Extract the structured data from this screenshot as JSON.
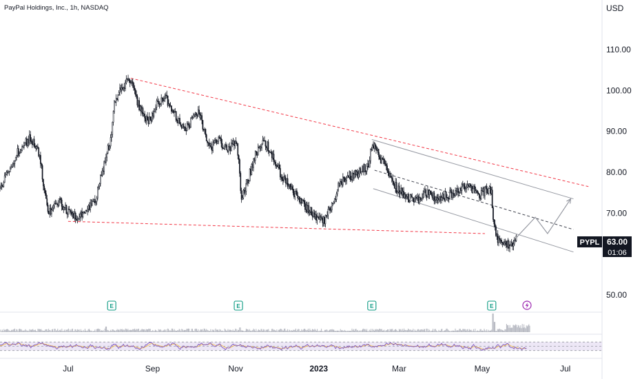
{
  "header": {
    "title": "PayPal Holdings, Inc., 1h, NASDAQ",
    "currency": "USD"
  },
  "badge": {
    "symbol": "PYPL",
    "price": "63.00",
    "countdown": "01:06"
  },
  "earnings": {
    "label": "E",
    "dates": [
      "2022-08-02",
      "2022-11-03",
      "2023-02-09",
      "2023-05-08"
    ]
  },
  "split_icon": "lightning-icon",
  "colors": {
    "candle": "#131722",
    "trend_red": "#f23645",
    "channel_gray": "#9598a1",
    "earnings": "#089981",
    "rsi_line": "#7e57c2",
    "rsi_fast": "#f5c04a",
    "rsi_band": "#ede7f6",
    "split_badge": "#9c27b0"
  },
  "chart_data": {
    "type": "candlestick",
    "symbol": "PYPL",
    "interval": "1h",
    "exchange": "NASDAQ",
    "y_ticks": [
      "110.00",
      "100.00",
      "90.00",
      "80.00",
      "70.00",
      "50.00"
    ],
    "ylim": [
      44,
      118
    ],
    "x_ticks": [
      {
        "label": "Jul",
        "date": "2022-07-01"
      },
      {
        "label": "Sep",
        "date": "2022-09-01"
      },
      {
        "label": "Nov",
        "date": "2022-11-01"
      },
      {
        "label": "2023",
        "date": "2023-01-01",
        "bold": true
      },
      {
        "label": "Mar",
        "date": "2023-03-01"
      },
      {
        "label": "May",
        "date": "2023-05-01"
      },
      {
        "label": "Jul",
        "date": "2023-07-01"
      }
    ],
    "xlim": [
      "2022-05-12",
      "2023-07-28"
    ],
    "price_path": [
      [
        "2022-05-12",
        76
      ],
      [
        "2022-05-18",
        80
      ],
      [
        "2022-05-25",
        85
      ],
      [
        "2022-06-03",
        88.5
      ],
      [
        "2022-06-08",
        86
      ],
      [
        "2022-06-10",
        84
      ],
      [
        "2022-06-14",
        75
      ],
      [
        "2022-06-17",
        70
      ],
      [
        "2022-06-24",
        73
      ],
      [
        "2022-06-29",
        71
      ],
      [
        "2022-07-05",
        69
      ],
      [
        "2022-07-14",
        70
      ],
      [
        "2022-07-21",
        73
      ],
      [
        "2022-07-28",
        83
      ],
      [
        "2022-08-02",
        89
      ],
      [
        "2022-08-04",
        97
      ],
      [
        "2022-08-10",
        101
      ],
      [
        "2022-08-16",
        102.5
      ],
      [
        "2022-08-22",
        96
      ],
      [
        "2022-08-29",
        92
      ],
      [
        "2022-09-03",
        96
      ],
      [
        "2022-09-10",
        99
      ],
      [
        "2022-09-14",
        96
      ],
      [
        "2022-09-21",
        92
      ],
      [
        "2022-09-26",
        91
      ],
      [
        "2022-10-01",
        93
      ],
      [
        "2022-10-05",
        95
      ],
      [
        "2022-10-10",
        89
      ],
      [
        "2022-10-14",
        86
      ],
      [
        "2022-10-20",
        88
      ],
      [
        "2022-10-26",
        85
      ],
      [
        "2022-11-01",
        88
      ],
      [
        "2022-11-03",
        84
      ],
      [
        "2022-11-05",
        74
      ],
      [
        "2022-11-10",
        78
      ],
      [
        "2022-11-15",
        84
      ],
      [
        "2022-11-22",
        88
      ],
      [
        "2022-11-28",
        84
      ],
      [
        "2022-12-05",
        79
      ],
      [
        "2022-12-12",
        76
      ],
      [
        "2022-12-18",
        73
      ],
      [
        "2022-12-24",
        71
      ],
      [
        "2022-12-30",
        69
      ],
      [
        "2023-01-05",
        68
      ],
      [
        "2023-01-11",
        72
      ],
      [
        "2023-01-16",
        77
      ],
      [
        "2023-01-23",
        79
      ],
      [
        "2023-01-31",
        80
      ],
      [
        "2023-02-07",
        82
      ],
      [
        "2023-02-09",
        87
      ],
      [
        "2023-02-14",
        84
      ],
      [
        "2023-02-20",
        81
      ],
      [
        "2023-02-27",
        76
      ],
      [
        "2023-03-06",
        74
      ],
      [
        "2023-03-13",
        73
      ],
      [
        "2023-03-20",
        75
      ],
      [
        "2023-03-27",
        74
      ],
      [
        "2023-04-03",
        74
      ],
      [
        "2023-04-10",
        75
      ],
      [
        "2023-04-17",
        77
      ],
      [
        "2023-04-24",
        76
      ],
      [
        "2023-04-28",
        74
      ],
      [
        "2023-05-01",
        75
      ],
      [
        "2023-05-05",
        76
      ],
      [
        "2023-05-08",
        75
      ],
      [
        "2023-05-09",
        68
      ],
      [
        "2023-05-12",
        64
      ],
      [
        "2023-05-16",
        62
      ],
      [
        "2023-05-20",
        62.2
      ],
      [
        "2023-05-24",
        63
      ],
      [
        "2023-05-26",
        64
      ]
    ],
    "trendlines": [
      {
        "name": "upper-resistance",
        "style": "dashed-red",
        "from": [
          "2022-08-16",
          103
        ],
        "to": [
          "2023-07-18",
          76.5
        ]
      },
      {
        "name": "lower-support",
        "style": "dashed-red",
        "from": [
          "2022-07-01",
          68
        ],
        "to": [
          "2023-05-03",
          65
        ]
      },
      {
        "name": "channel-top",
        "style": "solid-gray",
        "from": [
          "2023-02-09",
          88
        ],
        "to": [
          "2023-07-07",
          73.5
        ]
      },
      {
        "name": "channel-mid",
        "style": "dashed-gray",
        "from": [
          "2023-02-11",
          80.5
        ],
        "to": [
          "2023-07-07",
          66
        ]
      },
      {
        "name": "channel-bottom",
        "style": "solid-gray",
        "from": [
          "2023-02-10",
          76
        ],
        "to": [
          "2023-07-07",
          60.5
        ]
      }
    ],
    "projection": {
      "style": "arrow-gray",
      "points": [
        [
          "2023-05-26",
          64
        ],
        [
          "2023-06-09",
          69
        ],
        [
          "2023-06-18",
          65
        ],
        [
          "2023-07-05",
          73.5
        ]
      ]
    },
    "volume": {
      "typical": 0.15,
      "spikes": [
        [
          "2023-05-09",
          1.0
        ],
        [
          "2023-05-10",
          0.55
        ],
        [
          "2022-07-29",
          0.3
        ],
        [
          "2022-11-04",
          0.25
        ]
      ]
    },
    "rsi": {
      "band": [
        30,
        70
      ],
      "mid": 50
    },
    "grid": false,
    "legend": "none"
  }
}
